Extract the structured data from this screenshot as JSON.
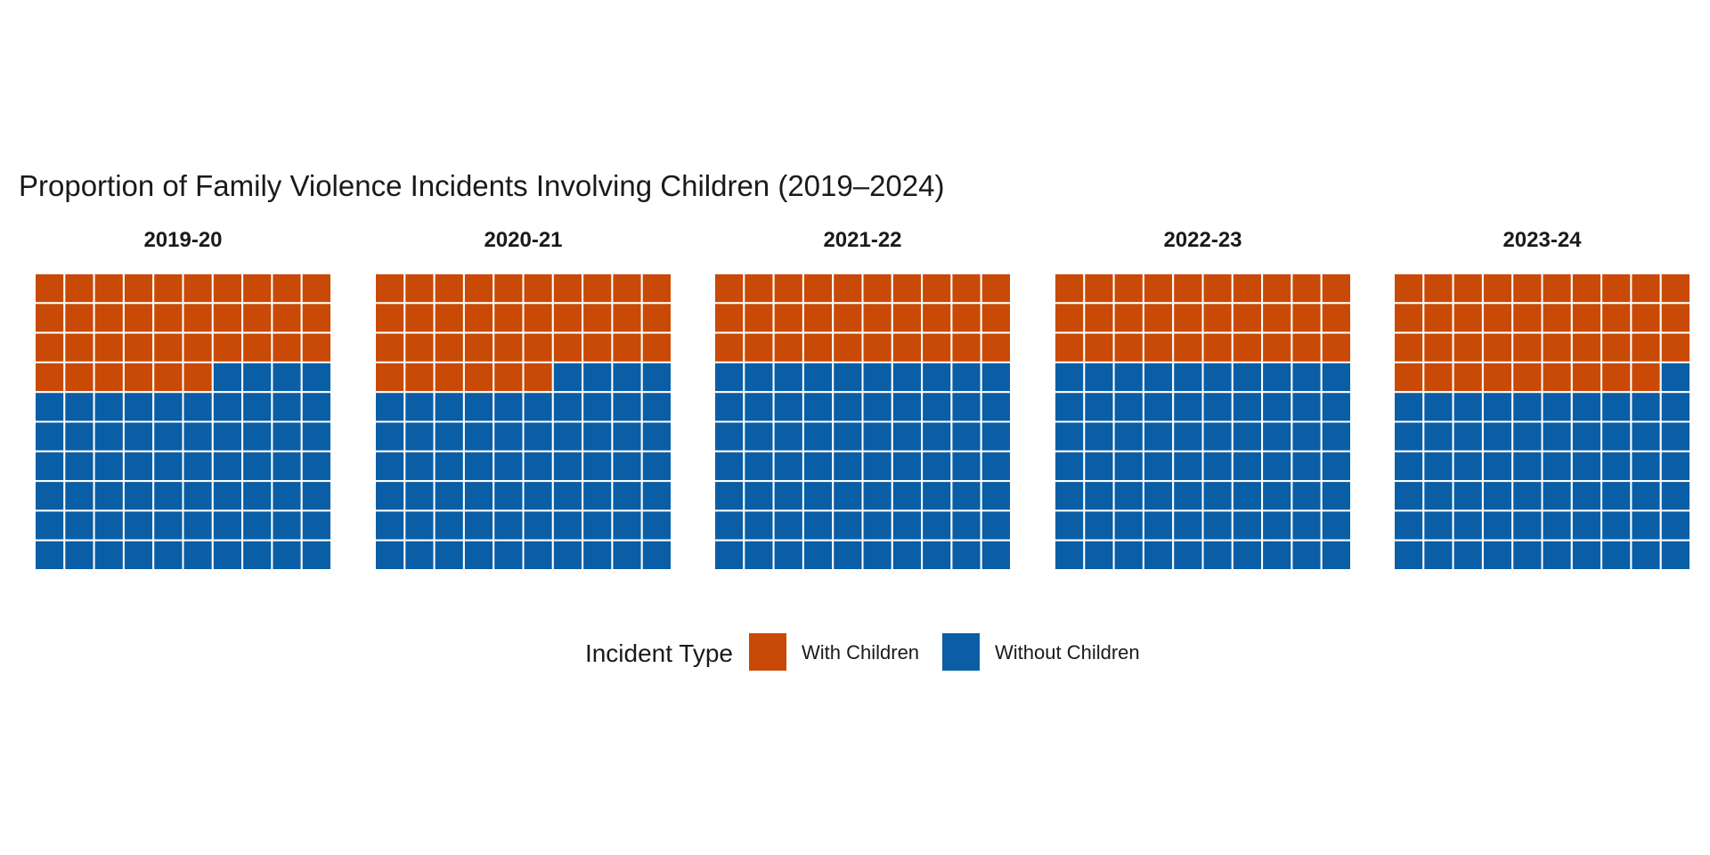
{
  "chart_data": {
    "type": "waffle",
    "title": "Proportion of Family Violence Incidents Involving Children (2019–2024)",
    "grid": {
      "rows": 10,
      "cols": 10,
      "total": 100
    },
    "fill_order": "row-major from top-left",
    "categories": [
      "2019-20",
      "2020-21",
      "2021-22",
      "2022-23",
      "2023-24"
    ],
    "series": [
      {
        "name": "With Children",
        "color": "#C84A06",
        "values": [
          36,
          36,
          30,
          30,
          39
        ]
      },
      {
        "name": "Without Children",
        "color": "#0A5EA6",
        "values": [
          64,
          64,
          70,
          70,
          61
        ]
      }
    ],
    "legend": {
      "title": "Incident Type",
      "placement": "bottom",
      "entries": [
        "With Children",
        "Without Children"
      ]
    }
  }
}
